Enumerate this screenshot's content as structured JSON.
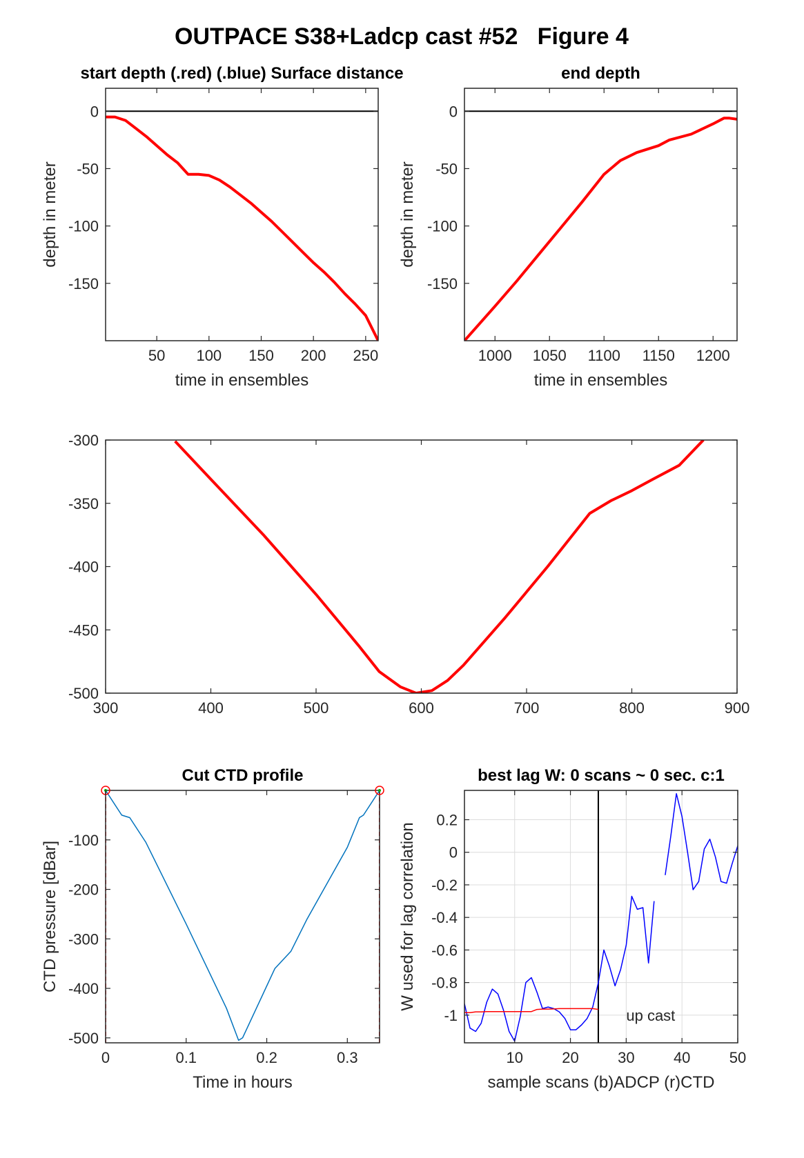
{
  "figure": {
    "title": "OUTPACE S38+Ladcp cast #52   Figure 4"
  },
  "chart_data": [
    {
      "id": "start",
      "type": "line",
      "title": "start depth (.red) (.blue) Surface distance",
      "xlabel": "time in ensembles",
      "ylabel": "depth in meter",
      "xlim": [
        1,
        262
      ],
      "ylim": [
        -200,
        20
      ],
      "xticks": [
        50,
        100,
        150,
        200,
        250
      ],
      "yticks": [
        0,
        -50,
        -100,
        -150
      ],
      "grid": false,
      "hline": 0,
      "series": [
        {
          "color": "#ff0000",
          "width": 4,
          "x": [
            1,
            10,
            20,
            30,
            40,
            50,
            60,
            70,
            80,
            90,
            100,
            110,
            120,
            130,
            140,
            150,
            160,
            170,
            180,
            190,
            200,
            210,
            220,
            230,
            240,
            250,
            262
          ],
          "y": [
            -5,
            -5,
            -8,
            -15,
            -22,
            -30,
            -38,
            -45,
            -55,
            -55,
            -56,
            -60,
            -66,
            -73,
            -80,
            -88,
            -96,
            -105,
            -114,
            -123,
            -132,
            -140,
            -149,
            -159,
            -168,
            -178,
            -200
          ]
        }
      ]
    },
    {
      "id": "end",
      "type": "line",
      "title": "end depth",
      "xlabel": "time in ensembles",
      "ylabel": "depth in meter",
      "xlim": [
        972,
        1222
      ],
      "ylim": [
        -200,
        20
      ],
      "xticks": [
        1000,
        1050,
        1100,
        1150,
        1200
      ],
      "yticks": [
        0,
        -50,
        -100,
        -150
      ],
      "grid": false,
      "hline": 0,
      "series": [
        {
          "color": "#ff0000",
          "width": 4,
          "x": [
            972,
            1000,
            1020,
            1040,
            1060,
            1080,
            1100,
            1115,
            1130,
            1150,
            1160,
            1180,
            1200,
            1210,
            1215,
            1222
          ],
          "y": [
            -200,
            -170,
            -148,
            -125,
            -102,
            -79,
            -55,
            -43,
            -36,
            -30,
            -25,
            -20,
            -11,
            -6,
            -6,
            -7
          ]
        }
      ]
    },
    {
      "id": "mid",
      "type": "line",
      "title": "",
      "xlabel": "",
      "ylabel": "",
      "xlim": [
        300,
        900
      ],
      "ylim": [
        -500,
        -300
      ],
      "xticks": [
        300,
        400,
        500,
        600,
        700,
        800,
        900
      ],
      "yticks": [
        -300,
        -350,
        -400,
        -450,
        -500
      ],
      "grid": false,
      "series": [
        {
          "color": "#ff0000",
          "width": 4,
          "x": [
            366,
            400,
            450,
            500,
            540,
            560,
            580,
            595,
            610,
            625,
            640,
            680,
            720,
            760,
            780,
            800,
            820,
            845,
            868
          ],
          "y": [
            -301,
            -331,
            -375,
            -422,
            -462,
            -483,
            -495,
            -500,
            -498,
            -490,
            -478,
            -440,
            -400,
            -358,
            -348,
            -340,
            -331,
            -320,
            -300
          ]
        }
      ]
    },
    {
      "id": "ctd",
      "type": "line",
      "title": "Cut CTD profile",
      "xlabel": "Time in hours",
      "ylabel": "CTD pressure [dBar]",
      "xlim": [
        0,
        0.34
      ],
      "ylim": [
        -510,
        0
      ],
      "xticks": [
        0,
        0.1,
        0.2,
        0.3
      ],
      "yticks": [
        -100,
        -200,
        -300,
        -400,
        -500
      ],
      "grid": false,
      "markers": [
        {
          "x": 0,
          "y": 0
        },
        {
          "x": 0.34,
          "y": 0
        }
      ],
      "vlines": [
        0,
        0.34
      ],
      "series": [
        {
          "color": "#0072bd",
          "width": 1.5,
          "x": [
            0,
            0.02,
            0.03,
            0.05,
            0.1,
            0.15,
            0.165,
            0.17,
            0.19,
            0.21,
            0.23,
            0.25,
            0.3,
            0.315,
            0.32,
            0.34
          ],
          "y": [
            0,
            -50,
            -55,
            -105,
            -270,
            -440,
            -505,
            -500,
            -430,
            -360,
            -325,
            -260,
            -115,
            -55,
            -50,
            0
          ]
        }
      ]
    },
    {
      "id": "lag",
      "type": "line",
      "title": "best lag W: 0 scans ~ 0 sec.  c:1",
      "xlabel": "sample scans (b)ADCP (r)CTD",
      "ylabel": "W used for lag correlation",
      "xlim": [
        1,
        50
      ],
      "ylim": [
        -1.17,
        0.38
      ],
      "xticks": [
        10,
        20,
        30,
        40,
        50
      ],
      "yticks": [
        0.2,
        0,
        -0.2,
        -0.4,
        -0.6,
        -0.8,
        -1
      ],
      "grid": true,
      "vline": 25,
      "annotation": {
        "text": "up cast",
        "x": 30,
        "y": -1
      },
      "series": [
        {
          "name": "ADCP",
          "color": "#0000ff",
          "width": 1.5,
          "x": [
            1,
            2,
            3,
            4,
            5,
            6,
            7,
            8,
            9,
            10,
            11,
            12,
            13,
            14,
            15,
            16,
            17,
            18,
            19,
            20,
            21,
            22,
            23,
            24,
            25,
            26,
            27,
            28,
            29,
            30,
            31,
            32,
            33,
            34,
            35,
            null,
            37,
            38,
            39,
            40,
            41,
            42,
            43,
            44,
            45,
            46,
            47,
            48,
            49,
            50
          ],
          "y": [
            -0.93,
            -1.08,
            -1.1,
            -1.05,
            -0.92,
            -0.84,
            -0.87,
            -0.97,
            -1.1,
            -1.16,
            -1.01,
            -0.8,
            -0.77,
            -0.86,
            -0.96,
            -0.95,
            -0.96,
            -0.98,
            -1.02,
            -1.09,
            -1.09,
            -1.06,
            -1.02,
            -0.95,
            -0.8,
            -0.6,
            -0.7,
            -0.82,
            -0.72,
            -0.57,
            -0.27,
            -0.35,
            -0.34,
            -0.68,
            -0.3,
            null,
            -0.14,
            0.1,
            0.36,
            0.22,
            0,
            -0.23,
            -0.18,
            0.02,
            0.08,
            -0.03,
            -0.18,
            -0.19,
            -0.07,
            0.04
          ]
        },
        {
          "name": "CTD",
          "color": "#ff0000",
          "width": 1.5,
          "x": [
            1,
            2,
            3,
            4,
            5,
            6,
            7,
            8,
            9,
            10,
            11,
            12,
            13,
            14,
            15,
            16,
            17,
            18,
            19,
            20,
            21,
            22,
            23,
            24,
            25
          ],
          "y": [
            -0.985,
            -0.985,
            -0.98,
            -0.98,
            -0.978,
            -0.978,
            -0.978,
            -0.978,
            -0.978,
            -0.978,
            -0.978,
            -0.978,
            -0.978,
            -0.965,
            -0.963,
            -0.963,
            -0.962,
            -0.96,
            -0.96,
            -0.96,
            -0.96,
            -0.96,
            -0.96,
            -0.96,
            -0.965
          ]
        }
      ]
    }
  ]
}
